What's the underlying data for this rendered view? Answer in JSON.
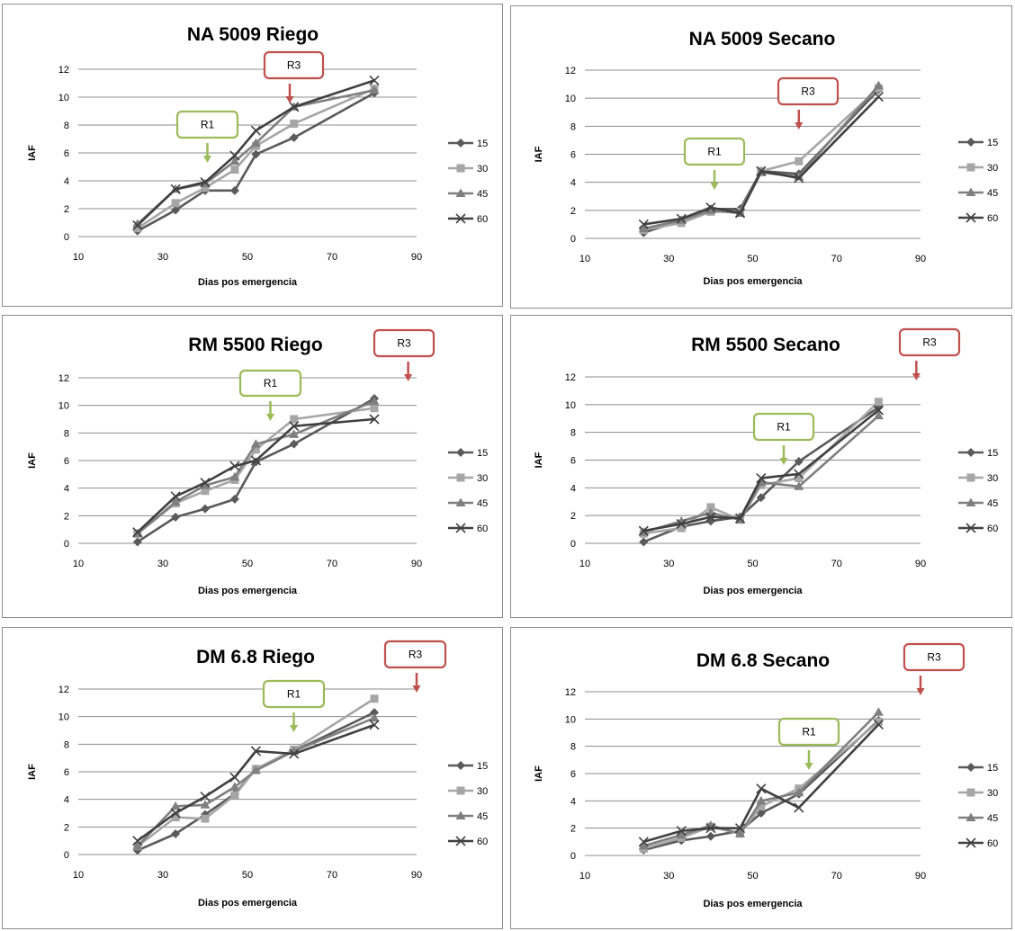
{
  "chart_data": [
    {
      "type": "line",
      "title": "NA 5009 Riego",
      "xlabel": "Dias pos emergencia",
      "ylabel": "IAF",
      "xlim": [
        10,
        90
      ],
      "ylim": [
        0,
        12
      ],
      "xticks": [
        10,
        30,
        50,
        70,
        90
      ],
      "yticks": [
        0,
        2,
        4,
        6,
        8,
        10,
        12
      ],
      "grid": "horizontal",
      "legend": "right",
      "series": [
        {
          "name": "15",
          "x": [
            24,
            33,
            40,
            47,
            52,
            61,
            80
          ],
          "y": [
            0.4,
            1.9,
            3.3,
            3.3,
            5.9,
            7.1,
            10.3
          ]
        },
        {
          "name": "30",
          "x": [
            24,
            33,
            40,
            47,
            52,
            61,
            80
          ],
          "y": [
            0.6,
            2.4,
            3.5,
            4.8,
            6.5,
            8.1,
            10.6
          ]
        },
        {
          "name": "45",
          "x": [
            24,
            33,
            40,
            47,
            52,
            61,
            80
          ],
          "y": [
            0.9,
            3.4,
            3.8,
            5.4,
            6.7,
            9.3,
            10.5
          ]
        },
        {
          "name": "60",
          "x": [
            24,
            33,
            40,
            47,
            52,
            61,
            80
          ],
          "y": [
            0.8,
            3.4,
            3.9,
            5.8,
            7.6,
            9.3,
            11.2
          ]
        }
      ],
      "annotations": [
        {
          "label": "R1",
          "x": 40,
          "color": "#9bbb59"
        },
        {
          "label": "R3",
          "x": 60,
          "color": "#c0504d"
        }
      ]
    },
    {
      "type": "line",
      "title": "NA 5009 Secano",
      "xlabel": "Dias pos emergencia",
      "ylabel": "IAF",
      "xlim": [
        10,
        90
      ],
      "ylim": [
        0,
        12
      ],
      "xticks": [
        10,
        30,
        50,
        70,
        90
      ],
      "yticks": [
        0,
        2,
        4,
        6,
        8,
        10,
        12
      ],
      "grid": "horizontal",
      "legend": "right",
      "series": [
        {
          "name": "15",
          "x": [
            24,
            33,
            40,
            47,
            52,
            61,
            80
          ],
          "y": [
            0.4,
            1.3,
            2.1,
            2.1,
            4.8,
            4.6,
            10.6
          ]
        },
        {
          "name": "30",
          "x": [
            24,
            33,
            40,
            47,
            52,
            61,
            80
          ],
          "y": [
            0.6,
            1.1,
            1.9,
            1.9,
            4.8,
            5.5,
            10.7
          ]
        },
        {
          "name": "45",
          "x": [
            24,
            33,
            40,
            47,
            52,
            61,
            80
          ],
          "y": [
            0.7,
            1.3,
            2.0,
            1.8,
            4.7,
            4.4,
            10.9
          ]
        },
        {
          "name": "60",
          "x": [
            24,
            33,
            40,
            47,
            52,
            61,
            80
          ],
          "y": [
            1.0,
            1.4,
            2.2,
            1.8,
            4.8,
            4.3,
            10.1
          ]
        }
      ],
      "annotations": [
        {
          "label": "R1",
          "x": 40,
          "color": "#9bbb59"
        },
        {
          "label": "R3",
          "x": 61,
          "color": "#c0504d"
        }
      ]
    },
    {
      "type": "line",
      "title": "RM 5500 Riego",
      "xlabel": "Dias pos emergencia",
      "ylabel": "IAF",
      "xlim": [
        10,
        90
      ],
      "ylim": [
        0,
        12
      ],
      "xticks": [
        10,
        30,
        50,
        70,
        90
      ],
      "yticks": [
        0,
        2,
        4,
        6,
        8,
        10,
        12
      ],
      "grid": "horizontal",
      "legend": "right",
      "series": [
        {
          "name": "15",
          "x": [
            24,
            33,
            40,
            47,
            52,
            61,
            80
          ],
          "y": [
            0.1,
            1.9,
            2.5,
            3.2,
            5.9,
            7.2,
            10.5
          ]
        },
        {
          "name": "30",
          "x": [
            24,
            33,
            40,
            47,
            52,
            61,
            80
          ],
          "y": [
            0.7,
            2.9,
            3.8,
            4.6,
            6.8,
            9.0,
            9.8
          ]
        },
        {
          "name": "45",
          "x": [
            24,
            33,
            40,
            47,
            52,
            61,
            80
          ],
          "y": [
            0.7,
            3.0,
            4.2,
            4.8,
            7.2,
            7.9,
            10.3
          ]
        },
        {
          "name": "60",
          "x": [
            24,
            33,
            40,
            47,
            52,
            61,
            80
          ],
          "y": [
            0.8,
            3.4,
            4.4,
            5.6,
            6.0,
            8.5,
            9.0
          ]
        }
      ],
      "annotations": [
        {
          "label": "R1",
          "x": 55,
          "color": "#9bbb59"
        },
        {
          "label": "R3",
          "x": 88,
          "color": "#c0504d"
        }
      ]
    },
    {
      "type": "line",
      "title": "RM 5500 Secano",
      "xlabel": "Dias pos emergencia",
      "ylabel": "IAF",
      "xlim": [
        10,
        90
      ],
      "ylim": [
        0,
        12
      ],
      "xticks": [
        10,
        30,
        50,
        70,
        90
      ],
      "yticks": [
        0,
        2,
        4,
        6,
        8,
        10,
        12
      ],
      "grid": "horizontal",
      "legend": "right",
      "series": [
        {
          "name": "15",
          "x": [
            24,
            33,
            40,
            47,
            52,
            61,
            80
          ],
          "y": [
            0.1,
            1.2,
            1.6,
            1.9,
            3.3,
            5.9,
            9.8
          ]
        },
        {
          "name": "30",
          "x": [
            24,
            33,
            40,
            47,
            52,
            61,
            80
          ],
          "y": [
            0.7,
            1.1,
            2.6,
            1.7,
            4.2,
            4.7,
            10.2
          ]
        },
        {
          "name": "45",
          "x": [
            24,
            33,
            40,
            47,
            52,
            61,
            80
          ],
          "y": [
            0.8,
            1.6,
            2.2,
            1.7,
            4.4,
            4.1,
            9.2
          ]
        },
        {
          "name": "60",
          "x": [
            24,
            33,
            40,
            47,
            52,
            61,
            80
          ],
          "y": [
            0.9,
            1.4,
            1.9,
            1.8,
            4.7,
            5.0,
            9.6
          ]
        }
      ],
      "annotations": [
        {
          "label": "R1",
          "x": 56,
          "color": "#9bbb59"
        },
        {
          "label": "R3",
          "x": 89,
          "color": "#c0504d"
        }
      ]
    },
    {
      "type": "line",
      "title": "DM 6.8 Riego",
      "xlabel": "Dias pos emergencia",
      "ylabel": "IAF",
      "xlim": [
        10,
        90
      ],
      "ylim": [
        0,
        12
      ],
      "xticks": [
        10,
        30,
        50,
        70,
        90
      ],
      "yticks": [
        0,
        2,
        4,
        6,
        8,
        10,
        12
      ],
      "grid": "horizontal",
      "legend": "right",
      "series": [
        {
          "name": "15",
          "x": [
            24,
            33,
            40,
            47,
            52,
            61,
            80
          ],
          "y": [
            0.3,
            1.5,
            2.9,
            4.4,
            6.2,
            7.5,
            10.3
          ]
        },
        {
          "name": "30",
          "x": [
            24,
            33,
            40,
            47,
            52,
            61,
            80
          ],
          "y": [
            0.6,
            2.7,
            2.6,
            4.3,
            6.2,
            7.6,
            11.3
          ]
        },
        {
          "name": "45",
          "x": [
            24,
            33,
            40,
            47,
            52,
            61,
            80
          ],
          "y": [
            0.6,
            3.5,
            3.6,
            4.9,
            6.1,
            7.5,
            9.9
          ]
        },
        {
          "name": "60",
          "x": [
            24,
            33,
            40,
            47,
            52,
            61,
            80
          ],
          "y": [
            1.0,
            3.0,
            4.2,
            5.6,
            7.5,
            7.3,
            9.4
          ]
        }
      ],
      "annotations": [
        {
          "label": "R1",
          "x": 60,
          "color": "#9bbb59"
        },
        {
          "label": "R3",
          "x": 90,
          "color": "#c0504d"
        }
      ]
    },
    {
      "type": "line",
      "title": "DM 6.8 Secano",
      "xlabel": "Dias pos emergencia",
      "ylabel": "IAF",
      "xlim": [
        10,
        90
      ],
      "ylim": [
        0,
        12
      ],
      "xticks": [
        10,
        30,
        50,
        70,
        90
      ],
      "yticks": [
        0,
        2,
        4,
        6,
        8,
        10,
        12
      ],
      "grid": "horizontal",
      "legend": "right",
      "series": [
        {
          "name": "15",
          "x": [
            24,
            33,
            40,
            47,
            52,
            61,
            80
          ],
          "y": [
            0.4,
            1.1,
            1.4,
            1.8,
            3.1,
            4.5,
            9.9
          ]
        },
        {
          "name": "30",
          "x": [
            24,
            33,
            40,
            47,
            52,
            61,
            80
          ],
          "y": [
            0.5,
            1.3,
            2.1,
            1.6,
            3.6,
            4.9,
            9.8
          ]
        },
        {
          "name": "45",
          "x": [
            24,
            33,
            40,
            47,
            52,
            61,
            80
          ],
          "y": [
            0.7,
            1.5,
            2.2,
            1.6,
            4.0,
            4.6,
            10.5
          ]
        },
        {
          "name": "60",
          "x": [
            24,
            33,
            40,
            47,
            52,
            61,
            80
          ],
          "y": [
            1.0,
            1.8,
            2.0,
            2.0,
            4.9,
            3.5,
            9.6
          ]
        }
      ],
      "annotations": [
        {
          "label": "R1",
          "x": 61,
          "color": "#9bbb59"
        },
        {
          "label": "R3",
          "x": 90,
          "color": "#c0504d"
        }
      ]
    }
  ],
  "styles": {
    "series_colors": [
      "#5a5a5a",
      "#a6a6a6",
      "#7f7f7f",
      "#404040"
    ],
    "markers": [
      "diamond",
      "square",
      "triangle",
      "x"
    ],
    "grid_color": "#8c8c8c",
    "axis_color": "#8c8c8c"
  }
}
